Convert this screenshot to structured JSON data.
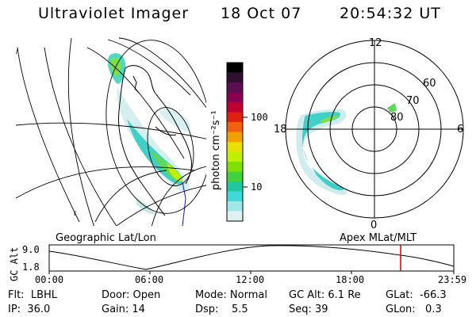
{
  "header": {
    "title": "Ultraviolet Imager",
    "date": "18 Oct 07",
    "time": "20:54:32 UT"
  },
  "left_map": {
    "label": "Geographic Lat/Lon"
  },
  "right_map": {
    "label": "Apex MLat/MLT",
    "mlt_labels": {
      "top": "12",
      "left": "18",
      "right": "6",
      "bottom": "0"
    },
    "lat_labels": [
      "60",
      "70",
      "80"
    ]
  },
  "colorbar": {
    "unit_label": "photon cm⁻²s⁻¹",
    "ticks": [
      "100",
      "10"
    ],
    "colors": [
      "#000000",
      "#301030",
      "#5a1050",
      "#8a0050",
      "#c00030",
      "#e02010",
      "#f06010",
      "#f0a000",
      "#e8e000",
      "#c0f000",
      "#80e000",
      "#40d040",
      "#20c8a0",
      "#40d8d8",
      "#a0e8e8",
      "#e0f0f0"
    ]
  },
  "alt_plot": {
    "ylabel": "GC Alt",
    "y_max": "9.0",
    "y_min": "1.8",
    "x_ticks": [
      "00:00",
      "06:00",
      "12:00",
      "18:00",
      "23:59"
    ],
    "marker_color": "#d00000"
  },
  "info": [
    [
      "Flt:  LBHL",
      "Door: Open",
      "Mode: Normal",
      "GC Alt: 6.1 Re",
      "GLat:  -66.3"
    ],
    [
      "IP:  36.0",
      "Gain: 14",
      "Dsp:    5.5",
      "Seq: 39",
      "GLon:   0.3"
    ]
  ]
}
